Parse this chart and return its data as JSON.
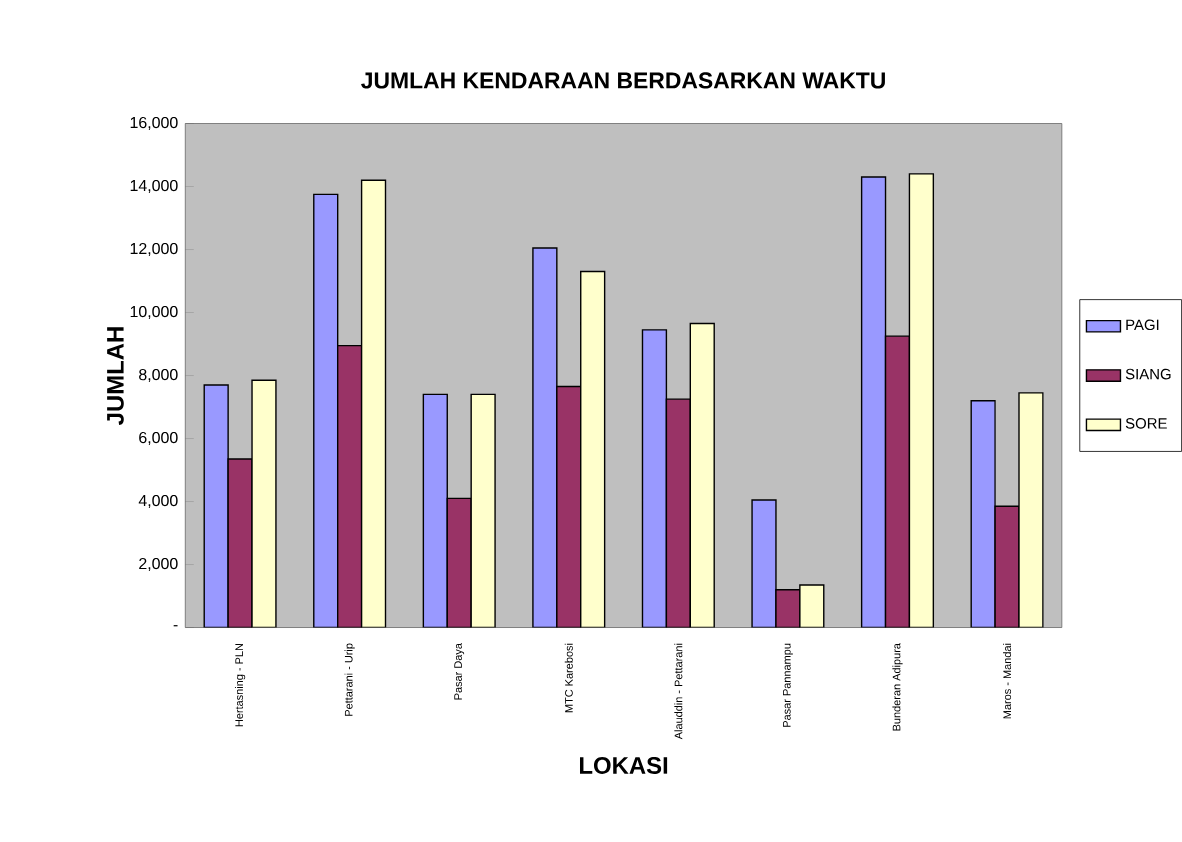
{
  "chart_data": {
    "type": "bar",
    "title": "JUMLAH KENDARAAN BERDASARKAN WAKTU",
    "xlabel": "LOKASI",
    "ylabel": "JUMLAH",
    "categories": [
      "Hertasning - PLN",
      "Pettarani - Urip",
      "Pasar Daya",
      "MTC Karebosi",
      "Alauddin - Pettarani",
      "Pasar Pannampu",
      "Bunderan Adipura",
      "Maros - Mandai"
    ],
    "series": [
      {
        "name": "PAGI",
        "color": "#9999ff",
        "values": [
          7700,
          13750,
          7400,
          12050,
          9450,
          4050,
          14300,
          7200
        ]
      },
      {
        "name": "SIANG",
        "color": "#993366",
        "values": [
          5350,
          8950,
          4100,
          7650,
          7250,
          1200,
          9250,
          3850
        ]
      },
      {
        "name": "SORE",
        "color": "#ffffcc",
        "values": [
          7850,
          14200,
          7400,
          11300,
          9650,
          1350,
          14400,
          7450
        ]
      }
    ],
    "ylim": [
      0,
      16000
    ],
    "yticks": [
      {
        "value": 0,
        "label": "-"
      },
      {
        "value": 2000,
        "label": "2,000"
      },
      {
        "value": 4000,
        "label": "4,000"
      },
      {
        "value": 6000,
        "label": "6,000"
      },
      {
        "value": 8000,
        "label": "8,000"
      },
      {
        "value": 10000,
        "label": "10,000"
      },
      {
        "value": 12000,
        "label": "12,000"
      },
      {
        "value": 14000,
        "label": "14,000"
      },
      {
        "value": 16000,
        "label": "16,000"
      }
    ],
    "grid": false,
    "legend": "right"
  }
}
